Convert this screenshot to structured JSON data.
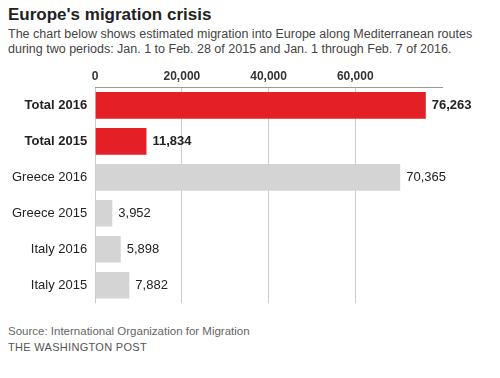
{
  "chart_data": {
    "type": "bar",
    "orientation": "horizontal",
    "title": "Europe's migration crisis",
    "subtitle": "The chart below shows estimated migration into Europe along Mediterranean routes during two periods: Jan. 1 to Feb. 28 of 2015 and Jan. 1 through Feb. 7 of 2016.",
    "source": "Source: International Organization for Migration",
    "credit": "THE WASHINGTON POST",
    "categories": [
      "Total 2016",
      "Total 2015",
      "Greece 2016",
      "Greece 2015",
      "Italy 2016",
      "Italy 2015"
    ],
    "values": [
      76263,
      11834,
      70365,
      3952,
      5898,
      7882
    ],
    "value_labels": [
      "76,263",
      "11,834",
      "70,365",
      "3,952",
      "5,898",
      "7,882"
    ],
    "colors": [
      "#e41f26",
      "#e41f26",
      "#d4d4d4",
      "#d4d4d4",
      "#d4d4d4",
      "#d4d4d4"
    ],
    "xlim": [
      0,
      80000
    ],
    "xticks": [
      0,
      {
        "value": 20000,
        "label": "20,000"
      },
      {
        "value": 40000,
        "label": "40,000"
      },
      {
        "value": 60000,
        "label": "60,000"
      }
    ],
    "grid": true,
    "data_labels": true
  }
}
